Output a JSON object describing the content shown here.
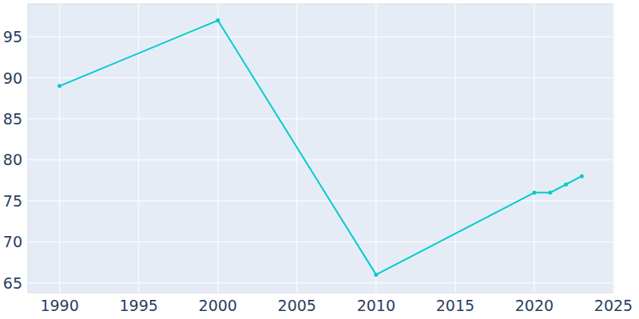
{
  "chart_data": {
    "type": "line",
    "x": [
      1990,
      2000,
      2010,
      2020,
      2021,
      2022,
      2023
    ],
    "values": [
      89,
      97,
      66,
      76,
      76,
      77,
      78
    ],
    "color": "#00cccc",
    "marker": "circle",
    "xlim": [
      1988,
      2025
    ],
    "xticks": [
      1990,
      1995,
      2000,
      2005,
      2010,
      2015,
      2020,
      2025
    ],
    "ylim": [
      63.8,
      99
    ],
    "yticks": [
      65,
      70,
      75,
      80,
      85,
      90,
      95
    ],
    "grid": true
  }
}
